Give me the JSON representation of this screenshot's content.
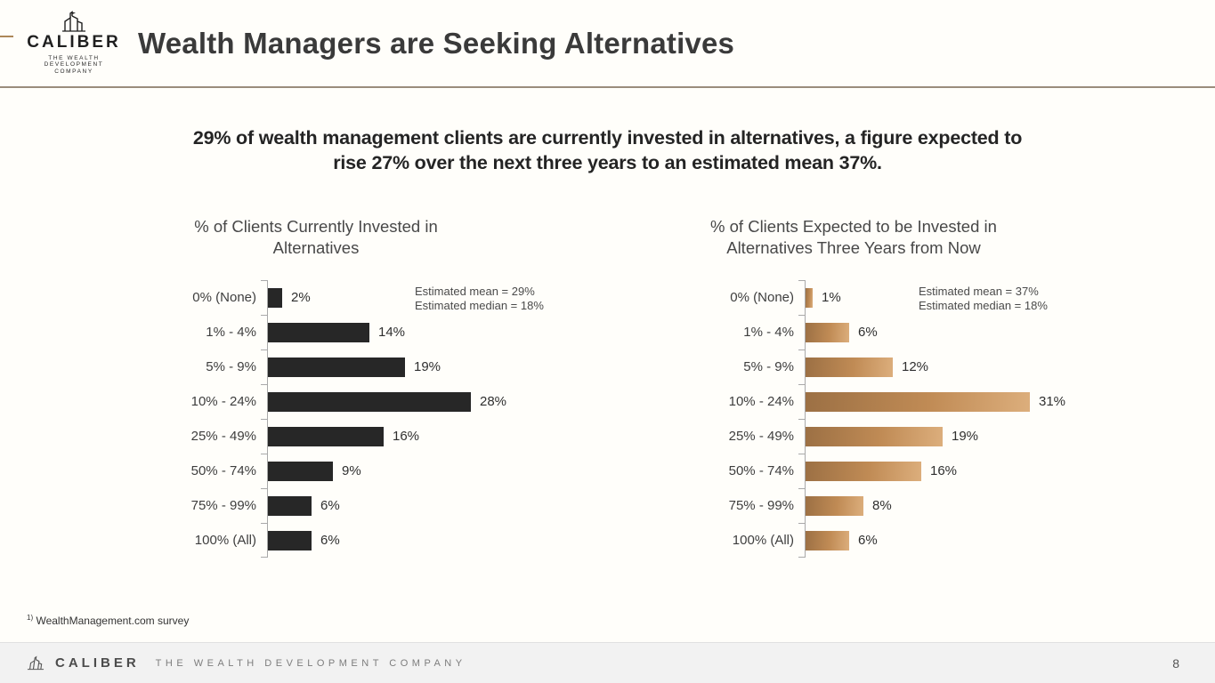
{
  "header": {
    "logo": {
      "name": "CALIBER",
      "tagline1": "THE WEALTH DEVELOPMENT",
      "tagline2": "COMPANY"
    },
    "title": "Wealth Managers are Seeking Alternatives"
  },
  "subtitle": {
    "line1": "29% of wealth management clients are currently invested in alternatives, a figure expected to",
    "line2": "rise 27% over the next three years to an estimated mean 37%."
  },
  "chart_data": [
    {
      "type": "bar",
      "orientation": "horizontal",
      "title": "% of Clients Currently Invested in Alternatives",
      "categories": [
        "0% (None)",
        "1% - 4%",
        "5% - 9%",
        "10% - 24%",
        "25% - 49%",
        "50% - 74%",
        "75% - 99%",
        "100% (All)"
      ],
      "values": [
        2,
        14,
        19,
        28,
        16,
        9,
        6,
        6
      ],
      "value_labels": [
        "2%",
        "14%",
        "19%",
        "28%",
        "16%",
        "9%",
        "6%",
        "6%"
      ],
      "annotations": [
        "Estimated mean = 29%",
        "Estimated median = 18%"
      ],
      "xlim": [
        0,
        31
      ],
      "grid": false,
      "bar_style": "solid-dark",
      "bar_color": "#272727"
    },
    {
      "type": "bar",
      "orientation": "horizontal",
      "title": "% of Clients Expected to be Invested in Alternatives Three Years from Now",
      "categories": [
        "0% (None)",
        "1% - 4%",
        "5% - 9%",
        "10% - 24%",
        "25% - 49%",
        "50% - 74%",
        "75% - 99%",
        "100% (All)"
      ],
      "values": [
        1,
        6,
        12,
        31,
        19,
        16,
        8,
        6
      ],
      "value_labels": [
        "1%",
        "6%",
        "12%",
        "31%",
        "19%",
        "16%",
        "8%",
        "6%"
      ],
      "annotations": [
        "Estimated mean = 37%",
        "Estimated median = 18%"
      ],
      "xlim": [
        0,
        31
      ],
      "grid": false,
      "bar_style": "tan-gradient",
      "bar_color_gradient": [
        "#9c7044",
        "#dcae7c"
      ]
    }
  ],
  "footnote": {
    "marker": "1)",
    "text": "WealthManagement.com survey"
  },
  "footer": {
    "brand": "CALIBER",
    "tagline": "THE WEALTH DEVELOPMENT COMPANY",
    "page_number": "8"
  },
  "colors": {
    "accent_line": "#9a8d7c",
    "edge_dash": "#ad8759",
    "bar_dark": "#272727",
    "bar_tan_start": "#9c7044",
    "bar_tan_end": "#dcae7c",
    "footer_bg": "#f2f2f2"
  }
}
